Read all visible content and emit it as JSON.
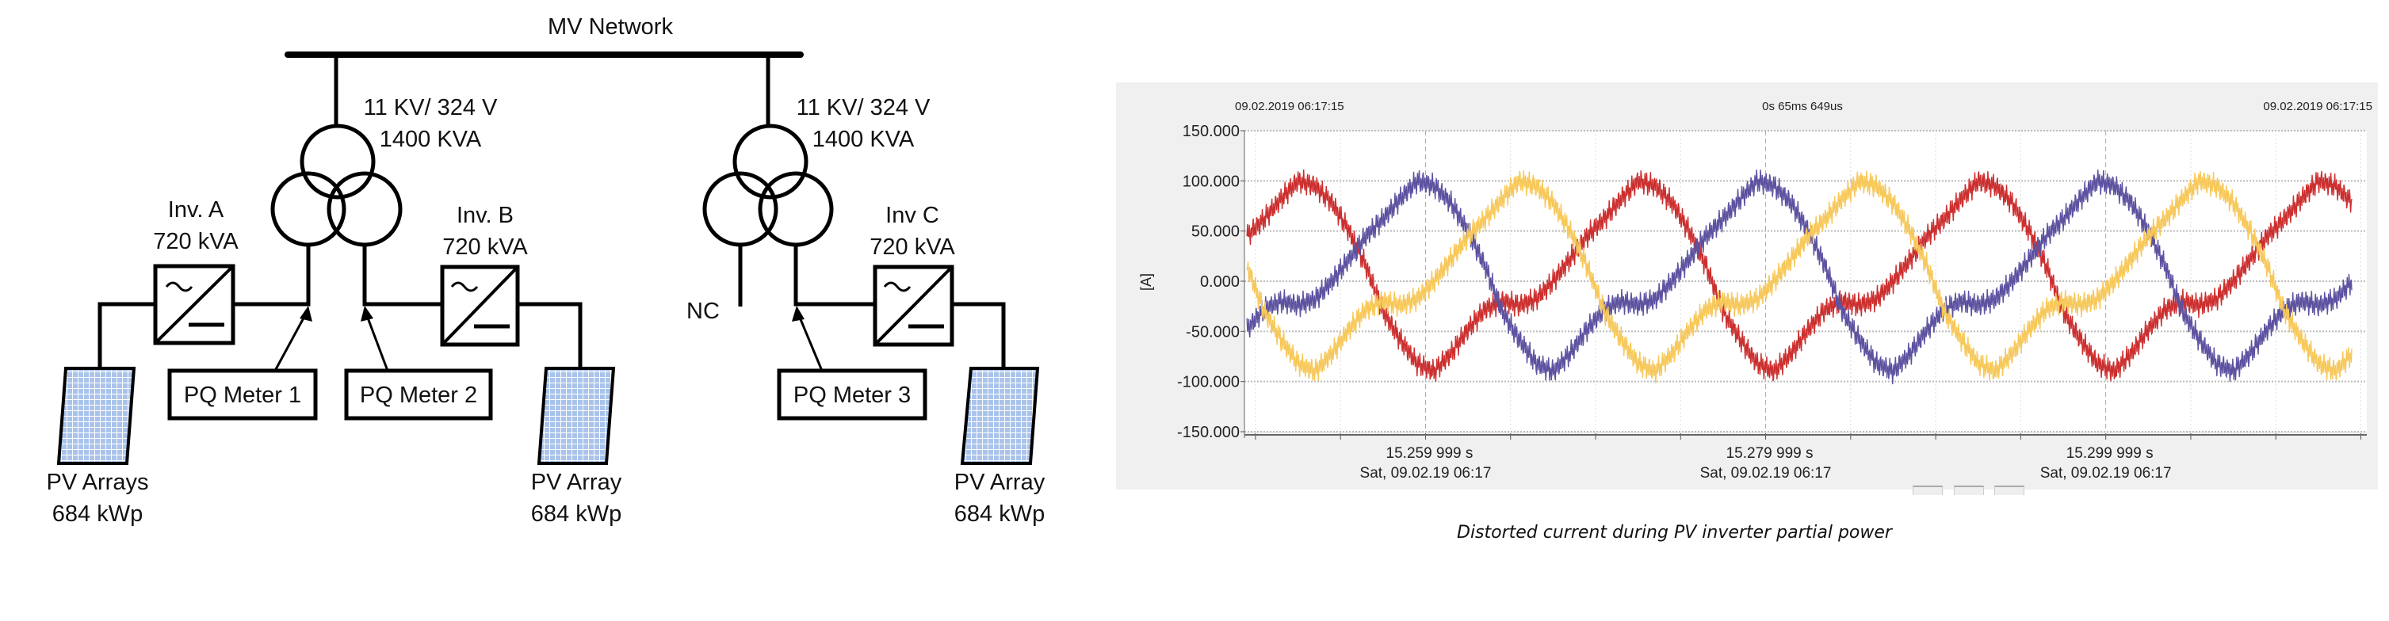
{
  "diagram": {
    "network_label": "MV Network",
    "transformers": [
      {
        "rating_voltage": "11 KV/ 324 V",
        "rating_power": "1400 KVA"
      },
      {
        "rating_voltage": "11 KV/ 324 V",
        "rating_power": "1400 KVA"
      }
    ],
    "inverters": [
      {
        "name": "Inv. A",
        "rating": "720 kVA"
      },
      {
        "name": "Inv. B",
        "rating": "720 kVA"
      },
      {
        "name": "Inv C",
        "rating": "720 kVA"
      }
    ],
    "meters": [
      "PQ Meter 1",
      "PQ Meter 2",
      "PQ Meter 3"
    ],
    "pv_arrays": [
      {
        "name": "PV Arrays",
        "rating": "684 kWp"
      },
      {
        "name": "PV Array",
        "rating": "684 kWp"
      },
      {
        "name": "PV Array",
        "rating": "684 kWp"
      }
    ],
    "nc_label": "NC"
  },
  "chart_data": {
    "type": "line",
    "header_left": "09.02.2019 06:17:15",
    "header_center": "0s 65ms 649us",
    "header_right": "09.02.2019 06:17:15",
    "ylabel": "[A]",
    "ylim": [
      -150,
      150
    ],
    "yticks": [
      "150.000",
      "100.000",
      "50.000",
      "0.000",
      "-50.000",
      "-100.000",
      "-150.000"
    ],
    "ytick_values": [
      150,
      100,
      50,
      0,
      -50,
      -100,
      -150
    ],
    "xlim": [
      15.24935,
      15.31535
    ],
    "xticks": [
      {
        "value": 15.259999,
        "label": "15.259 999 s",
        "date": "Sat, 09.02.19 06:17"
      },
      {
        "value": 15.279999,
        "label": "15.279 999 s",
        "date": "Sat, 09.02.19 06:17"
      },
      {
        "value": 15.299999,
        "label": "15.299 999 s",
        "date": "Sat, 09.02.19 06:17"
      }
    ],
    "grid": true,
    "x_start": 15.2495,
    "x_step": 0.001,
    "series": [
      {
        "color": "#cc2f2f",
        "values": [
          45,
          62,
          82,
          100,
          95,
          78,
          50,
          15,
          -30,
          -58,
          -82,
          -90,
          -72,
          -48,
          -28,
          -20,
          -24,
          -18,
          0,
          22,
          45,
          62,
          82,
          100,
          95,
          78,
          50,
          15,
          -30,
          -58,
          -82,
          -90,
          -72,
          -48,
          -28,
          -20,
          -24,
          -18,
          0,
          22,
          45,
          62,
          82,
          100,
          95,
          78,
          50,
          15,
          -30,
          -58,
          -82,
          -90,
          -72,
          -48,
          -28,
          -20,
          -24,
          -18,
          0,
          22,
          45,
          62,
          82,
          100,
          95,
          78
        ]
      },
      {
        "color": "#5c52a0",
        "values": [
          -48,
          -28,
          -20,
          -24,
          -18,
          0,
          22,
          45,
          62,
          82,
          100,
          95,
          78,
          50,
          15,
          -30,
          -58,
          -82,
          -90,
          -72,
          -48,
          -28,
          -20,
          -24,
          -18,
          0,
          22,
          45,
          62,
          82,
          100,
          95,
          78,
          50,
          15,
          -30,
          -58,
          -82,
          -90,
          -72,
          -48,
          -28,
          -20,
          -24,
          -18,
          0,
          22,
          45,
          62,
          82,
          100,
          95,
          78,
          50,
          15,
          -30,
          -58,
          -82,
          -90,
          -72,
          -48,
          -28,
          -20,
          -24,
          -18,
          0
        ]
      },
      {
        "color": "#f7c85a",
        "values": [
          15,
          -30,
          -58,
          -82,
          -90,
          -72,
          -48,
          -28,
          -20,
          -24,
          -18,
          0,
          22,
          45,
          62,
          82,
          100,
          95,
          78,
          50,
          15,
          -30,
          -58,
          -82,
          -90,
          -72,
          -48,
          -28,
          -20,
          -24,
          -18,
          0,
          22,
          45,
          62,
          82,
          100,
          95,
          78,
          50,
          15,
          -30,
          -58,
          -82,
          -90,
          -72,
          -48,
          -28,
          -20,
          -24,
          -18,
          0,
          22,
          45,
          62,
          82,
          100,
          95,
          78,
          50,
          15,
          -30,
          -58,
          -82,
          -90,
          -72
        ]
      }
    ]
  },
  "caption": "Distorted current during PV inverter partial power"
}
